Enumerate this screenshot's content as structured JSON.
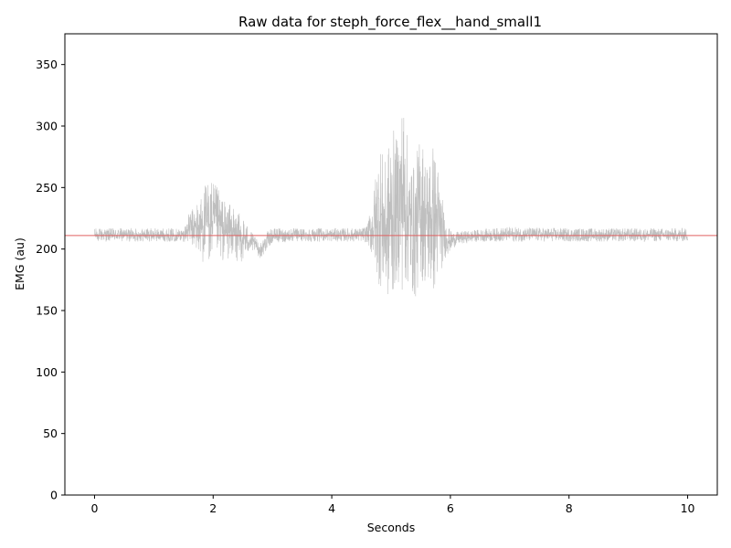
{
  "chart_data": {
    "type": "line",
    "title": "Raw data for steph_force_flex__hand_small1",
    "xlabel": "Seconds",
    "ylabel": "EMG (au)",
    "xlim": [
      -0.5,
      10.5
    ],
    "ylim": [
      0,
      375
    ],
    "xticks": [
      0,
      2,
      4,
      6,
      8,
      10
    ],
    "yticks": [
      0,
      50,
      100,
      150,
      200,
      250,
      300,
      350
    ],
    "grid": false,
    "series": [
      {
        "color": "#bfbfbf",
        "envelope": {
          "x": [
            0.0,
            0.5,
            1.0,
            1.5,
            1.6,
            1.7,
            1.8,
            1.9,
            2.0,
            2.1,
            2.2,
            2.3,
            2.4,
            2.5,
            2.6,
            2.7,
            2.8,
            2.9,
            3.0,
            3.5,
            4.0,
            4.5,
            4.6,
            4.7,
            4.8,
            4.9,
            5.0,
            5.1,
            5.2,
            5.3,
            5.4,
            5.5,
            5.6,
            5.7,
            5.8,
            5.9,
            6.0,
            6.1,
            6.3,
            6.5,
            7.0,
            8.0,
            9.0,
            10.0
          ],
          "upper": [
            217,
            217,
            217,
            217,
            230,
            236,
            245,
            258,
            255,
            248,
            240,
            236,
            230,
            228,
            218,
            210,
            205,
            214,
            217,
            217,
            217,
            217,
            220,
            245,
            291,
            270,
            302,
            290,
            328,
            278,
            268,
            298,
            275,
            290,
            268,
            228,
            215,
            214,
            215,
            216,
            218,
            217,
            217,
            217
          ],
          "lower": [
            206,
            206,
            206,
            206,
            205,
            198,
            190,
            187,
            190,
            192,
            188,
            195,
            188,
            190,
            196,
            198,
            192,
            199,
            205,
            206,
            206,
            206,
            205,
            190,
            170,
            160,
            153,
            175,
            163,
            170,
            157,
            175,
            168,
            160,
            174,
            192,
            198,
            203,
            205,
            206,
            206,
            206,
            206,
            206
          ]
        }
      }
    ],
    "reference_line": {
      "y": 211,
      "color": "#e06060"
    }
  }
}
